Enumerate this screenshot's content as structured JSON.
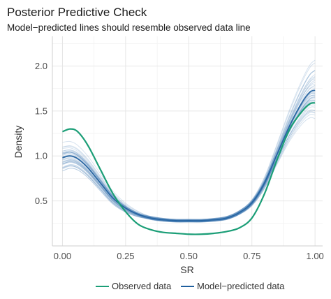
{
  "chart_data": {
    "type": "line",
    "title": "Posterior Predictive Check",
    "subtitle": "Model−predicted lines should resemble observed data line",
    "xlabel": "SR",
    "ylabel": "Density",
    "xlim": [
      -0.04,
      1.03
    ],
    "ylim": [
      0.0,
      2.33
    ],
    "x_ticks": [
      0.0,
      0.25,
      0.5,
      0.75,
      1.0
    ],
    "x_tick_labels": [
      "0.00",
      "0.25",
      "0.50",
      "0.75",
      "1.00"
    ],
    "y_ticks": [
      0.5,
      1.0,
      1.5,
      2.0
    ],
    "y_tick_labels": [
      "0.5",
      "1.0",
      "1.5",
      "2.0"
    ],
    "grid": true,
    "legend_position": "bottom",
    "legend": [
      {
        "label": "Observed data",
        "color": "#1b9e77"
      },
      {
        "label": "Model−predicted data",
        "color": "#1f5f9e"
      }
    ],
    "series": [
      {
        "name": "Observed data",
        "color": "#1b9e77",
        "x": [
          0.0,
          0.03,
          0.06,
          0.1,
          0.15,
          0.2,
          0.25,
          0.3,
          0.35,
          0.4,
          0.45,
          0.5,
          0.55,
          0.6,
          0.65,
          0.7,
          0.75,
          0.8,
          0.85,
          0.9,
          0.95,
          0.98,
          1.0
        ],
        "y": [
          1.27,
          1.3,
          1.27,
          1.12,
          0.85,
          0.58,
          0.38,
          0.24,
          0.18,
          0.15,
          0.14,
          0.13,
          0.13,
          0.14,
          0.16,
          0.2,
          0.31,
          0.58,
          0.96,
          1.3,
          1.5,
          1.58,
          1.59
        ]
      },
      {
        "name": "Model−predicted data",
        "color": "#1f5f9e",
        "x": [
          0.0,
          0.03,
          0.06,
          0.1,
          0.15,
          0.2,
          0.25,
          0.3,
          0.35,
          0.4,
          0.45,
          0.5,
          0.55,
          0.6,
          0.65,
          0.7,
          0.75,
          0.8,
          0.85,
          0.9,
          0.95,
          0.98,
          1.0
        ],
        "y": [
          0.98,
          1.0,
          0.97,
          0.87,
          0.7,
          0.53,
          0.42,
          0.35,
          0.31,
          0.29,
          0.28,
          0.28,
          0.28,
          0.29,
          0.31,
          0.37,
          0.48,
          0.7,
          1.02,
          1.34,
          1.6,
          1.71,
          1.73
        ]
      }
    ],
    "replicates": {
      "color": "#4a7fb5",
      "count": 40
    }
  }
}
